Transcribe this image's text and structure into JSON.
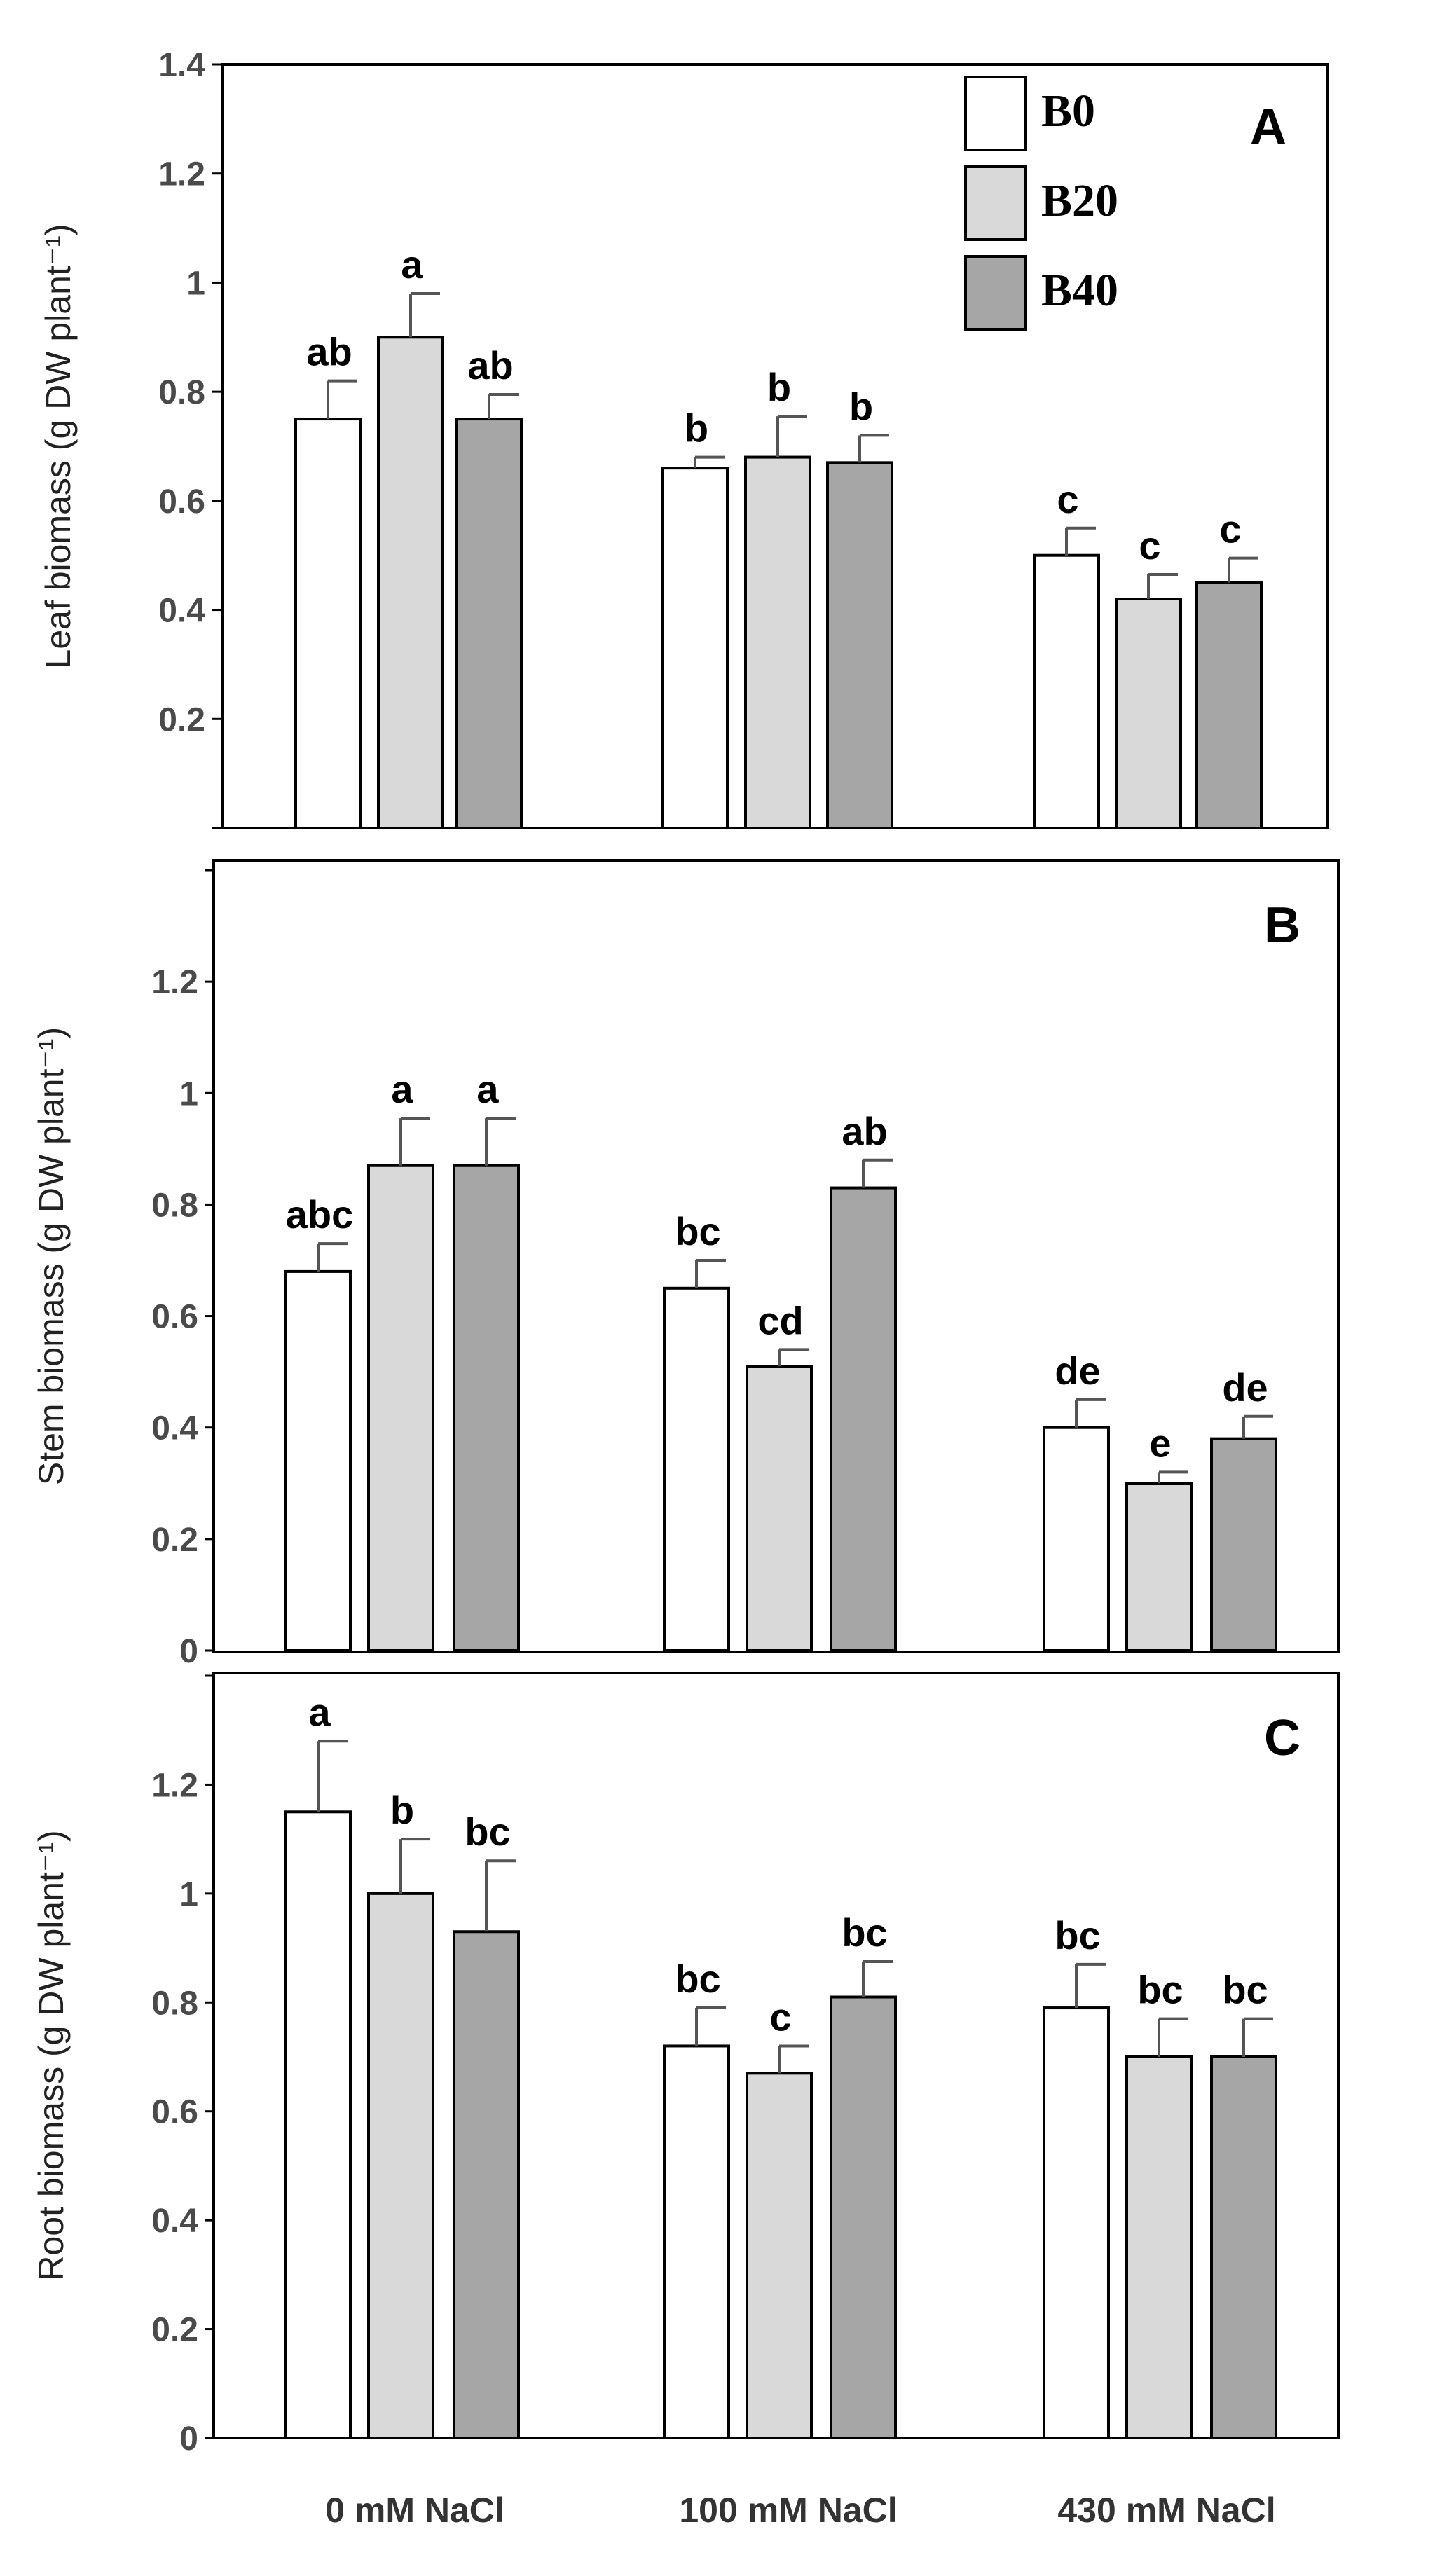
{
  "colors": {
    "B0": "#ffffff",
    "B20": "#d9d9d9",
    "B40": "#a6a6a6"
  },
  "legend": {
    "items": [
      "B0",
      "B20",
      "B40"
    ]
  },
  "chart_data": [
    {
      "type": "bar",
      "panel": "A",
      "title": "",
      "xlabel": "",
      "ylabel": "Leaf biomass (g DW plant⁻¹)",
      "ylim": [
        0,
        1.4
      ],
      "yticks": [
        0,
        0.2,
        0.4,
        0.6,
        0.8,
        1,
        1.2,
        1.4
      ],
      "ytick_labels": [
        "",
        "0.2",
        "0.4",
        "0.6",
        "0.8",
        "1",
        "1.2",
        "1.4"
      ],
      "categories": [
        "0 mM NaCl",
        "100 mM NaCl",
        "430 mM NaCl"
      ],
      "series": [
        {
          "name": "B0",
          "values": [
            0.75,
            0.66,
            0.5
          ],
          "errors": [
            0.07,
            0.02,
            0.05
          ],
          "labels": [
            "ab",
            "b",
            "c"
          ]
        },
        {
          "name": "B20",
          "values": [
            0.9,
            0.68,
            0.42
          ],
          "errors": [
            0.08,
            0.075,
            0.045
          ],
          "labels": [
            "a",
            "b",
            "c"
          ]
        },
        {
          "name": "B40",
          "values": [
            0.75,
            0.67,
            0.45
          ],
          "errors": [
            0.045,
            0.05,
            0.045
          ],
          "labels": [
            "ab",
            "b",
            "c"
          ]
        }
      ]
    },
    {
      "type": "bar",
      "panel": "B",
      "title": "",
      "xlabel": "",
      "ylabel": "Stem biomass (g DW plant⁻¹)",
      "ylim": [
        0,
        1.4
      ],
      "yticks": [
        0,
        0.2,
        0.4,
        0.6,
        0.8,
        1,
        1.2,
        1.4
      ],
      "ytick_labels": [
        "0",
        "0.2",
        "0.4",
        "0.6",
        "0.8",
        "1",
        "1.2",
        ""
      ],
      "categories": [
        "0 mM NaCl",
        "100 mM NaCl",
        "430 mM NaCl"
      ],
      "series": [
        {
          "name": "B0",
          "values": [
            0.68,
            0.65,
            0.4
          ],
          "errors": [
            0.05,
            0.05,
            0.05
          ],
          "labels": [
            "abc",
            "bc",
            "de"
          ]
        },
        {
          "name": "B20",
          "values": [
            0.87,
            0.51,
            0.3
          ],
          "errors": [
            0.085,
            0.03,
            0.02
          ],
          "labels": [
            "a",
            "cd",
            "e"
          ]
        },
        {
          "name": "B40",
          "values": [
            0.87,
            0.83,
            0.38
          ],
          "errors": [
            0.085,
            0.05,
            0.04
          ],
          "labels": [
            "a",
            "ab",
            "de"
          ]
        }
      ]
    },
    {
      "type": "bar",
      "panel": "C",
      "title": "",
      "xlabel": "",
      "ylabel": "Root biomass (g DW plant⁻¹)",
      "ylim": [
        0,
        1.4
      ],
      "yticks": [
        0,
        0.2,
        0.4,
        0.6,
        0.8,
        1,
        1.2,
        1.4
      ],
      "ytick_labels": [
        "0",
        "0.2",
        "0.4",
        "0.6",
        "0.8",
        "1",
        "1.2",
        ""
      ],
      "categories": [
        "0 mM NaCl",
        "100 mM NaCl",
        "430 mM NaCl"
      ],
      "series": [
        {
          "name": "B0",
          "values": [
            1.15,
            0.72,
            0.79
          ],
          "errors": [
            0.13,
            0.07,
            0.08
          ],
          "labels": [
            "a",
            "bc",
            "bc"
          ]
        },
        {
          "name": "B20",
          "values": [
            1.0,
            0.67,
            0.7
          ],
          "errors": [
            0.1,
            0.05,
            0.07
          ],
          "labels": [
            "b",
            "c",
            "bc"
          ]
        },
        {
          "name": "B40",
          "values": [
            0.93,
            0.81,
            0.7
          ],
          "errors": [
            0.13,
            0.065,
            0.07
          ],
          "labels": [
            "bc",
            "bc",
            "bc"
          ]
        }
      ]
    }
  ]
}
